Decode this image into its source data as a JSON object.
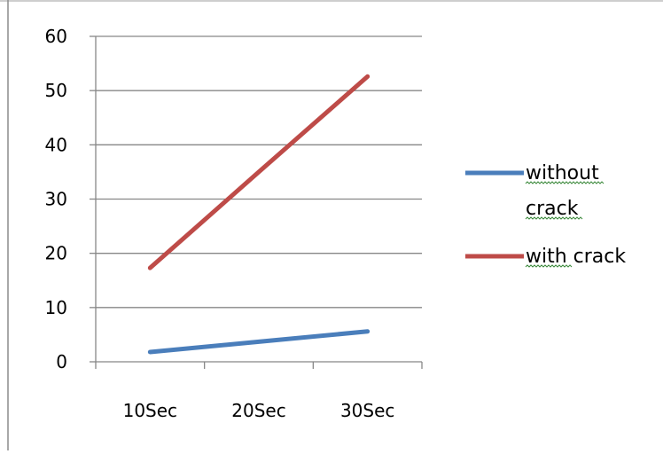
{
  "chart_data": {
    "type": "line",
    "title": "",
    "xlabel": "",
    "ylabel": "",
    "categories": [
      "10Sec",
      "20Sec",
      "30Sec"
    ],
    "ylim": [
      0,
      60
    ],
    "yticks": [
      0,
      10,
      20,
      30,
      40,
      50,
      60
    ],
    "grid": true,
    "legend_position": "right",
    "series": [
      {
        "name_lines": [
          "without",
          "crack"
        ],
        "values": [
          1.8,
          3.7,
          5.6
        ],
        "color": "#4a7ebb"
      },
      {
        "name_lines": [
          "with crack"
        ],
        "values": [
          17.3,
          35.0,
          52.6
        ],
        "color": "#be4b48"
      }
    ]
  }
}
